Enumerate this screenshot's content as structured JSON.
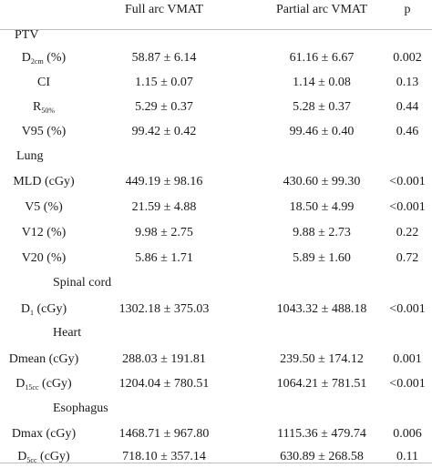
{
  "header": {
    "col1": "Full arc VMAT",
    "col2": "Partial arc VMAT",
    "col3": "p"
  },
  "groups": {
    "ptv": "PTV",
    "lung": "Lung",
    "spinal": "Spinal cord",
    "heart": "Heart",
    "esophagus": "Esophagus"
  },
  "rows": {
    "d2cm": {
      "label_main": "D",
      "label_sub": "2cm",
      "label_suffix": " (%)",
      "full": "58.87 ± 6.14",
      "partial": "61.16 ± 6.67",
      "p": "0.002"
    },
    "ci": {
      "label": "CI",
      "full": "1.15 ± 0.07",
      "partial": "1.14 ± 0.08",
      "p": "0.13"
    },
    "r50": {
      "label_main": "R",
      "label_sub": "50%",
      "full": "5.29 ± 0.37",
      "partial": "5.28 ± 0.37",
      "p": "0.44"
    },
    "v95": {
      "label": "V95 (%)",
      "full": "99.42 ± 0.42",
      "partial": "99.46 ± 0.40",
      "p": "0.46"
    },
    "mld": {
      "label": "MLD (cGy)",
      "full": "449.19 ± 98.16",
      "partial": "430.60 ± 99.30",
      "p": "<0.001"
    },
    "v5": {
      "label": "V5 (%)",
      "full": "21.59 ± 4.88",
      "partial": "18.50 ± 4.99",
      "p": "<0.001"
    },
    "v12": {
      "label": "V12 (%)",
      "full": "9.98 ± 2.75",
      "partial": "9.88 ± 2.73",
      "p": "0.22"
    },
    "v20": {
      "label": "V20 (%)",
      "full": "5.86 ± 1.71",
      "partial": "5.89 ± 1.60",
      "p": "0.72"
    },
    "d1": {
      "label_main": "D",
      "label_sub": "1",
      "label_suffix": " (cGy)",
      "full": "1302.18 ± 375.03",
      "partial": "1043.32 ± 488.18",
      "p": "<0.001"
    },
    "dmeanh": {
      "label": "Dmean (cGy)",
      "full": "288.03 ± 191.81",
      "partial": "239.50 ± 174.12",
      "p": "0.001"
    },
    "d15": {
      "label_main": "D",
      "label_sub": "15cc",
      "label_suffix": " (cGy)",
      "full": "1204.04 ± 780.51",
      "partial": "1064.21 ± 781.51",
      "p": "<0.001"
    },
    "dmax": {
      "label": "Dmax (cGy)",
      "full": "1468.71 ± 967.80",
      "partial": "1115.36 ± 479.74",
      "p": "0.006"
    },
    "d5": {
      "label_main": "D",
      "label_sub": "5cc",
      "label_suffix": " (cGy)",
      "full": "718.10 ± 357.14",
      "partial": "630.89 ± 268.58",
      "p": "0.11"
    }
  }
}
